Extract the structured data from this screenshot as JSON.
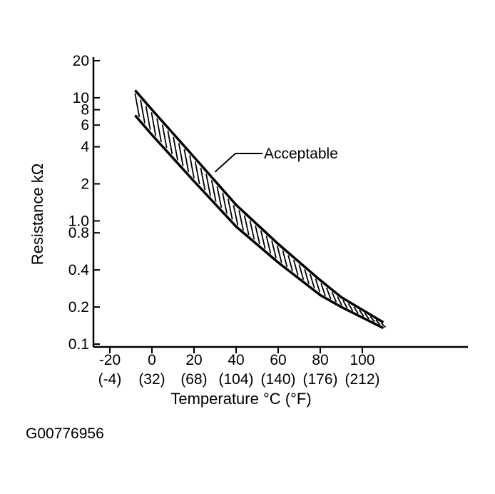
{
  "chart_data": {
    "type": "area",
    "title": "",
    "xlabel": "Temperature °C (°F)",
    "ylabel": "Resistance kΩ",
    "y_scale": "log",
    "xlim": [
      -30,
      150
    ],
    "ylim": [
      0.1,
      20
    ],
    "x_ticks": [
      {
        "value": -20,
        "label": "-20",
        "sublabel": "(-4)"
      },
      {
        "value": 0,
        "label": "0",
        "sublabel": "(32)"
      },
      {
        "value": 20,
        "label": "20",
        "sublabel": "(68)"
      },
      {
        "value": 40,
        "label": "40",
        "sublabel": "(104)"
      },
      {
        "value": 60,
        "label": "60",
        "sublabel": "(140)"
      },
      {
        "value": 80,
        "label": "80",
        "sublabel": "(176)"
      },
      {
        "value": 100,
        "label": "100",
        "sublabel": "(212)"
      }
    ],
    "y_ticks": [
      {
        "value": 0.1,
        "label": "0.1"
      },
      {
        "value": 0.2,
        "label": "0.2"
      },
      {
        "value": 0.4,
        "label": "0.4"
      },
      {
        "value": 0.8,
        "label": "0.8"
      },
      {
        "value": 1.0,
        "label": "1.0"
      },
      {
        "value": 2,
        "label": "2"
      },
      {
        "value": 4,
        "label": "4"
      },
      {
        "value": 6,
        "label": "6"
      },
      {
        "value": 8,
        "label": "8"
      },
      {
        "value": 10,
        "label": "10"
      },
      {
        "value": 20,
        "label": "20"
      }
    ],
    "series": [
      {
        "name": "Acceptable",
        "x": [
          -8,
          0,
          20,
          40,
          60,
          80,
          90,
          110
        ],
        "upper": [
          11.5,
          8.0,
          3.3,
          1.35,
          0.65,
          0.33,
          0.24,
          0.15
        ],
        "lower": [
          7.2,
          5.0,
          2.1,
          0.9,
          0.46,
          0.25,
          0.2,
          0.135
        ]
      }
    ],
    "annotations": [
      {
        "text": "Acceptable",
        "x_at": 30,
        "y_at": 2.5
      }
    ],
    "grid": false,
    "legend": "none"
  },
  "figure_id": "G00776956"
}
